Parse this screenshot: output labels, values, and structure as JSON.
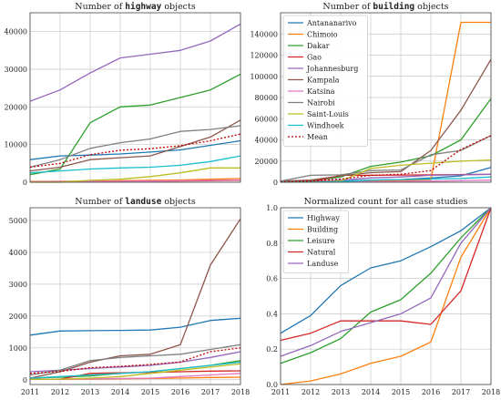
{
  "chart_data": [
    {
      "type": "line",
      "title_parts": [
        "Number of ",
        "highway",
        " objects"
      ],
      "x": [
        2011,
        2012,
        2013,
        2014,
        2015,
        2016,
        2017,
        2018
      ],
      "ylim": [
        0,
        45000
      ],
      "yticks": [
        0,
        10000,
        20000,
        30000,
        40000
      ],
      "show_xticklabels": false,
      "grid": true,
      "series": [
        {
          "name": "Antananarivo",
          "color": "#1f77b4",
          "values": [
            6000,
            7000,
            7200,
            7500,
            8000,
            8600,
            9800,
            11000
          ]
        },
        {
          "name": "Chimoio",
          "color": "#ff7f0e",
          "values": [
            200,
            250,
            300,
            400,
            500,
            600,
            800,
            1000
          ]
        },
        {
          "name": "Dakar",
          "color": "#2ca02c",
          "values": [
            2000,
            3500,
            15800,
            20000,
            20500,
            22500,
            24500,
            28700
          ]
        },
        {
          "name": "Gao",
          "color": "#d62728",
          "values": [
            100,
            150,
            200,
            250,
            300,
            350,
            400,
            500
          ]
        },
        {
          "name": "Johannesburg",
          "color": "#9467bd",
          "values": [
            21500,
            24500,
            29000,
            33000,
            34000,
            35000,
            37500,
            42000
          ]
        },
        {
          "name": "Kampala",
          "color": "#8c564b",
          "values": [
            3000,
            4000,
            6000,
            6500,
            7000,
            9500,
            12000,
            16500
          ]
        },
        {
          "name": "Katsina",
          "color": "#e377c2",
          "values": [
            100,
            150,
            200,
            250,
            300,
            400,
            500,
            600
          ]
        },
        {
          "name": "Nairobi",
          "color": "#7f7f7f",
          "values": [
            4000,
            6000,
            9000,
            10500,
            11500,
            13500,
            14000,
            15000
          ]
        },
        {
          "name": "Saint-Louis",
          "color": "#bcbd22",
          "values": [
            0,
            0,
            500,
            800,
            1500,
            2500,
            3800,
            3800
          ]
        },
        {
          "name": "Windhoek",
          "color": "#17becf",
          "values": [
            2500,
            3000,
            3500,
            3800,
            4000,
            4500,
            5500,
            7000
          ]
        },
        {
          "name": "Mean",
          "color": "#c00000",
          "dashed": true,
          "values": [
            4000,
            5000,
            7300,
            8500,
            8900,
            9700,
            11000,
            12800
          ]
        }
      ]
    },
    {
      "type": "line",
      "title_parts": [
        "Number of ",
        "building",
        " objects"
      ],
      "x": [
        2011,
        2012,
        2013,
        2014,
        2015,
        2016,
        2017,
        2018
      ],
      "ylim": [
        0,
        160000
      ],
      "yticks": [
        0,
        20000,
        40000,
        60000,
        80000,
        100000,
        120000,
        140000
      ],
      "show_xticklabels": false,
      "grid": true,
      "legend": "upper-left",
      "series": [
        {
          "name": "Antananarivo",
          "color": "#1f77b4",
          "values": [
            100,
            300,
            1000,
            2000,
            2500,
            4000,
            6000,
            14000
          ]
        },
        {
          "name": "Chimoio",
          "color": "#ff7f0e",
          "values": [
            50,
            100,
            500,
            1000,
            1500,
            2500,
            151000,
            151000
          ]
        },
        {
          "name": "Dakar",
          "color": "#2ca02c",
          "values": [
            500,
            1000,
            5000,
            15000,
            19000,
            25000,
            40000,
            79000
          ]
        },
        {
          "name": "Gao",
          "color": "#d62728",
          "values": [
            50,
            100,
            6500,
            6500,
            6800,
            7000,
            7200,
            7500
          ]
        },
        {
          "name": "Johannesburg",
          "color": "#9467bd",
          "values": [
            200,
            500,
            2000,
            4000,
            5000,
            6500,
            7000,
            7500
          ]
        },
        {
          "name": "Kampala",
          "color": "#8c564b",
          "values": [
            1000,
            2000,
            6000,
            9000,
            10000,
            30000,
            68000,
            116000
          ]
        },
        {
          "name": "Katsina",
          "color": "#e377c2",
          "values": [
            50,
            100,
            200,
            500,
            800,
            1000,
            1500,
            2000
          ]
        },
        {
          "name": "Nairobi",
          "color": "#7f7f7f",
          "values": [
            1000,
            6500,
            7000,
            11000,
            11500,
            26000,
            30000,
            44000
          ]
        },
        {
          "name": "Saint-Louis",
          "color": "#bcbd22",
          "values": [
            50,
            100,
            1000,
            13000,
            16000,
            18000,
            20000,
            21000
          ]
        },
        {
          "name": "Windhoek",
          "color": "#17becf",
          "values": [
            50,
            100,
            500,
            2000,
            2500,
            3000,
            3500,
            5000
          ]
        },
        {
          "name": "Mean",
          "color": "#c00000",
          "dashed": true,
          "values": [
            300,
            1000,
            3000,
            6500,
            7500,
            11000,
            31000,
            44000
          ]
        }
      ]
    },
    {
      "type": "line",
      "title_parts": [
        "Number of ",
        "landuse",
        " objects"
      ],
      "x": [
        2011,
        2012,
        2013,
        2014,
        2015,
        2016,
        2017,
        2018
      ],
      "ylim": [
        -150,
        5400
      ],
      "yticks": [
        0,
        1000,
        2000,
        3000,
        4000,
        5000
      ],
      "xticks": [
        2011,
        2012,
        2013,
        2014,
        2015,
        2016,
        2017,
        2018
      ],
      "grid": true,
      "series": [
        {
          "name": "Antananarivo",
          "color": "#1f77b4",
          "values": [
            1400,
            1530,
            1540,
            1550,
            1560,
            1650,
            1860,
            1930
          ]
        },
        {
          "name": "Chimoio",
          "color": "#ff7f0e",
          "values": [
            10,
            10,
            20,
            30,
            40,
            50,
            70,
            80
          ]
        },
        {
          "name": "Dakar",
          "color": "#2ca02c",
          "values": [
            50,
            80,
            120,
            200,
            250,
            350,
            450,
            600
          ]
        },
        {
          "name": "Gao",
          "color": "#d62728",
          "values": [
            10,
            20,
            200,
            220,
            230,
            250,
            270,
            280
          ]
        },
        {
          "name": "Johannesburg",
          "color": "#9467bd",
          "values": [
            250,
            300,
            350,
            400,
            450,
            550,
            700,
            880
          ]
        },
        {
          "name": "Kampala",
          "color": "#8c564b",
          "values": [
            50,
            250,
            550,
            750,
            800,
            1100,
            3600,
            5050
          ]
        },
        {
          "name": "Katsina",
          "color": "#e377c2",
          "values": [
            10,
            20,
            30,
            40,
            50,
            100,
            150,
            200
          ]
        },
        {
          "name": "Nairobi",
          "color": "#7f7f7f",
          "values": [
            150,
            300,
            600,
            700,
            750,
            800,
            950,
            1100
          ]
        },
        {
          "name": "Saint-Louis",
          "color": "#bcbd22",
          "values": [
            10,
            20,
            50,
            100,
            200,
            300,
            400,
            500
          ]
        },
        {
          "name": "Windhoek",
          "color": "#17becf",
          "values": [
            50,
            100,
            150,
            200,
            250,
            350,
            450,
            550
          ]
        },
        {
          "name": "Mean",
          "color": "#c00000",
          "dashed": true,
          "values": [
            200,
            260,
            380,
            420,
            480,
            560,
            880,
            1000
          ]
        }
      ]
    },
    {
      "type": "line",
      "title_parts": [
        "Normalized count for all case studies"
      ],
      "x": [
        2011,
        2012,
        2013,
        2014,
        2015,
        2016,
        2017,
        2018
      ],
      "ylim": [
        0,
        1.0
      ],
      "yticks": [
        0.0,
        0.2,
        0.4,
        0.6,
        0.8,
        1.0
      ],
      "xticks": [
        2011,
        2012,
        2013,
        2014,
        2015,
        2016,
        2017,
        2018
      ],
      "grid": true,
      "legend": "upper-left",
      "series": [
        {
          "name": "Highway",
          "color": "#1f77b4",
          "values": [
            0.29,
            0.39,
            0.56,
            0.66,
            0.7,
            0.78,
            0.87,
            1.0
          ]
        },
        {
          "name": "Building",
          "color": "#ff7f0e",
          "values": [
            0.0,
            0.02,
            0.06,
            0.12,
            0.16,
            0.24,
            0.72,
            1.0
          ]
        },
        {
          "name": "Leisure",
          "color": "#2ca02c",
          "values": [
            0.12,
            0.18,
            0.26,
            0.41,
            0.48,
            0.63,
            0.83,
            1.0
          ]
        },
        {
          "name": "Natural",
          "color": "#d62728",
          "values": [
            0.25,
            0.29,
            0.36,
            0.36,
            0.36,
            0.34,
            0.53,
            1.0
          ]
        },
        {
          "name": "Landuse",
          "color": "#9467bd",
          "values": [
            0.16,
            0.22,
            0.3,
            0.35,
            0.4,
            0.49,
            0.8,
            1.0
          ]
        }
      ]
    }
  ]
}
